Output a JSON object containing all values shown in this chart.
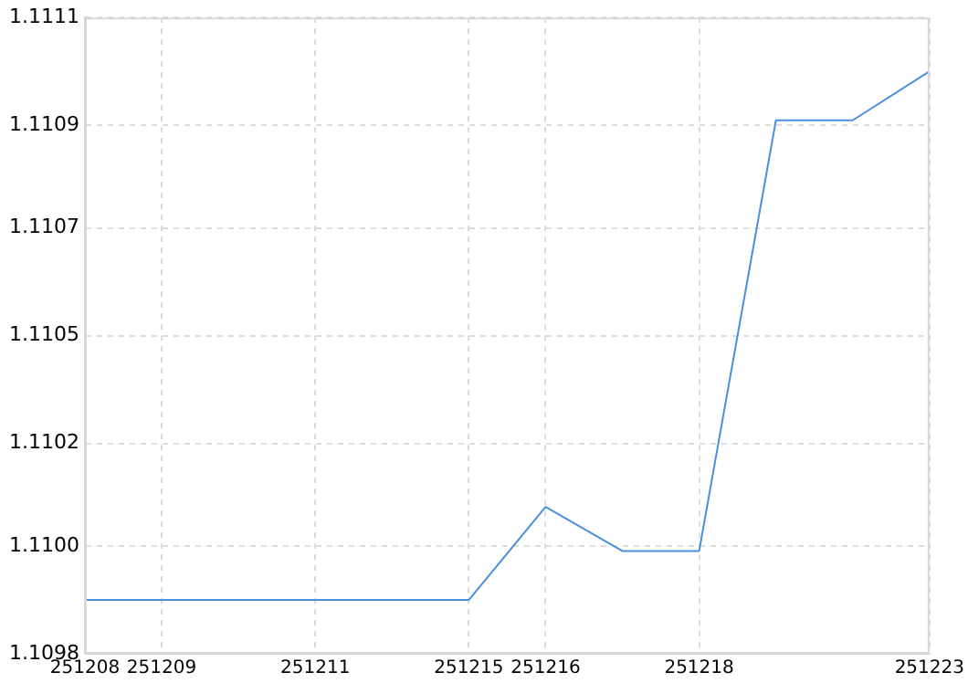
{
  "chart_data": {
    "type": "line",
    "categories": [
      "251208",
      "251209",
      null,
      "251211",
      null,
      "251215",
      "251216",
      null,
      "251218",
      null,
      null,
      "251223"
    ],
    "series": [
      {
        "color": "#4a8fe2",
        "values": [
          1.10991,
          1.10991,
          1.10991,
          1.10991,
          1.10991,
          1.10991,
          1.1101,
          1.11001,
          1.11001,
          1.11089,
          1.11089,
          1.11099
        ]
      }
    ],
    "ylim": [
      1.1098,
      1.1111
    ],
    "yticks": [
      {
        "value": 1.1098,
        "label": "1.1098"
      },
      {
        "value": 1.11002,
        "label": "1.1100"
      },
      {
        "value": 1.11023,
        "label": "1.1102"
      },
      {
        "value": 1.11045,
        "label": "1.1105"
      },
      {
        "value": 1.11067,
        "label": "1.1107"
      },
      {
        "value": 1.11088,
        "label": "1.1109"
      },
      {
        "value": 1.1111,
        "label": "1.1111"
      }
    ],
    "grid": true,
    "legend": false,
    "marker": "none",
    "line_style": "solid"
  }
}
